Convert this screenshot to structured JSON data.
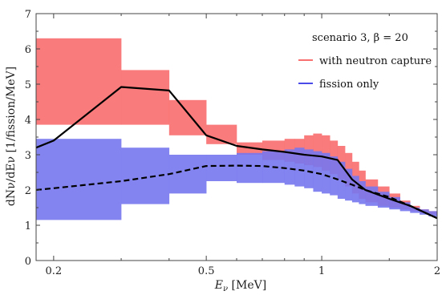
{
  "chart_data": {
    "type": "area",
    "xscale": "log",
    "xlim": [
      0.18,
      2.0
    ],
    "ylim": [
      0,
      7
    ],
    "xticks": [
      {
        "value": 0.2,
        "label": "0.2"
      },
      {
        "value": 0.5,
        "label": "0.5"
      },
      {
        "value": 1,
        "label": "1"
      },
      {
        "value": 2,
        "label": "2"
      }
    ],
    "yticks": [
      {
        "value": 0,
        "label": "0"
      },
      {
        "value": 1,
        "label": "1"
      },
      {
        "value": 2,
        "label": "2"
      },
      {
        "value": 3,
        "label": "3"
      },
      {
        "value": 4,
        "label": "4"
      },
      {
        "value": 5,
        "label": "5"
      },
      {
        "value": 6,
        "label": "6"
      },
      {
        "value": 7,
        "label": "7"
      }
    ],
    "xlabel_main": "E",
    "xlabel_sub": "ν",
    "xlabel_unit": " [MeV]",
    "ylabel": "dNν/dEν [1/fission/MeV]",
    "legend_title": "scenario 3, β = 20",
    "legend_position": "top-right",
    "bands": [
      {
        "name": "with neutron capture",
        "color": "#f87070",
        "opacity": 0.92,
        "edges": [
          0.18,
          0.3,
          0.4,
          0.5,
          0.6,
          0.7,
          0.8,
          0.85,
          0.9,
          0.95,
          1.0,
          1.05,
          1.1,
          1.15,
          1.2,
          1.25,
          1.3,
          1.4,
          1.5,
          1.6,
          1.7,
          1.8,
          1.9,
          2.0
        ],
        "lower": [
          3.85,
          3.85,
          3.55,
          3.3,
          3.0,
          2.85,
          2.8,
          2.75,
          2.7,
          2.65,
          2.55,
          2.45,
          2.3,
          2.1,
          1.9,
          1.75,
          1.65,
          1.55,
          1.5,
          1.45,
          1.4,
          1.35,
          1.3
        ],
        "upper": [
          6.3,
          5.4,
          4.55,
          3.85,
          3.35,
          3.4,
          3.45,
          3.45,
          3.55,
          3.6,
          3.55,
          3.4,
          3.25,
          3.05,
          2.8,
          2.55,
          2.3,
          2.1,
          1.9,
          1.7,
          1.55,
          1.45,
          1.4
        ]
      },
      {
        "name": "fission only",
        "color": "#7777ee",
        "opacity": 0.9,
        "edges": [
          0.18,
          0.3,
          0.4,
          0.5,
          0.6,
          0.7,
          0.8,
          0.85,
          0.9,
          0.95,
          1.0,
          1.05,
          1.1,
          1.15,
          1.2,
          1.25,
          1.3,
          1.4,
          1.5,
          1.6,
          1.7,
          1.8,
          1.9,
          2.0
        ],
        "lower": [
          1.15,
          1.6,
          1.9,
          2.25,
          2.2,
          2.2,
          2.15,
          2.1,
          2.05,
          1.95,
          1.9,
          1.85,
          1.75,
          1.7,
          1.65,
          1.6,
          1.55,
          1.5,
          1.45,
          1.4,
          1.35,
          1.3,
          1.25
        ],
        "upper": [
          3.45,
          3.2,
          3.0,
          3.0,
          3.05,
          3.1,
          3.15,
          3.2,
          3.15,
          3.1,
          3.05,
          2.95,
          2.8,
          2.6,
          2.4,
          2.25,
          2.1,
          1.95,
          1.8,
          1.65,
          1.5,
          1.45,
          1.4
        ]
      }
    ],
    "lines": [
      {
        "style": "solid",
        "x": [
          0.18,
          0.2,
          0.3,
          0.4,
          0.5,
          0.6,
          0.7,
          0.8,
          0.9,
          1.0,
          1.1,
          1.2,
          1.3,
          1.5,
          1.7,
          2.0
        ],
        "y": [
          3.2,
          3.4,
          4.92,
          4.82,
          3.55,
          3.25,
          3.15,
          3.08,
          3.0,
          2.95,
          2.85,
          2.3,
          2.0,
          1.75,
          1.55,
          1.2
        ]
      },
      {
        "style": "dashed",
        "x": [
          0.18,
          0.2,
          0.3,
          0.4,
          0.5,
          0.6,
          0.7,
          0.8,
          0.9,
          1.0,
          1.1,
          1.2,
          1.3,
          1.5,
          1.7,
          2.0
        ],
        "y": [
          2.0,
          2.05,
          2.25,
          2.45,
          2.68,
          2.69,
          2.68,
          2.62,
          2.55,
          2.45,
          2.3,
          2.15,
          2.0,
          1.8,
          1.55,
          1.2
        ]
      }
    ]
  }
}
